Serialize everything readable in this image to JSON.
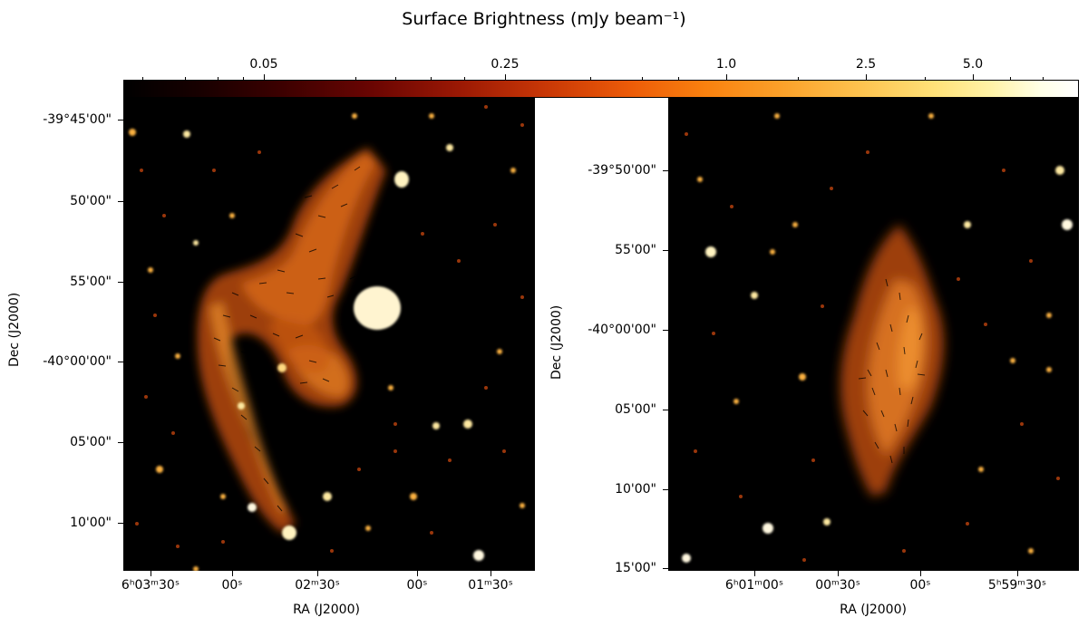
{
  "colorbar": {
    "title": "Surface Brightness (mJy beam⁻¹)",
    "ticks": [
      "0.05",
      "0.25",
      "1.0",
      "2.5",
      "5.0"
    ],
    "colormap": [
      "#000000",
      "#6a0502",
      "#c83706",
      "#f9810f",
      "#fdc24e",
      "#ffffff"
    ]
  },
  "left_panel": {
    "dec_labels": [
      "-39°45'00\"",
      "50'00\"",
      "55'00\"",
      "-40°00'00\"",
      "05'00\"",
      "10'00\""
    ],
    "ra_labels": [
      "6ʰ03ᵐ30ˢ",
      "00ˢ",
      "02ᵐ30ˢ",
      "00ˢ",
      "01ᵐ30ˢ"
    ],
    "xlabel": "RA (J2000)",
    "ylabel": "Dec (J2000)"
  },
  "right_panel": {
    "dec_labels": [
      "-39°50'00\"",
      "55'00\"",
      "-40°00'00\"",
      "05'00\"",
      "10'00\"",
      "15'00\""
    ],
    "ra_labels": [
      "6ʰ01ᵐ00ˢ",
      "00ᵐ30ˢ",
      "00ˢ",
      "5ʰ59ᵐ30ˢ"
    ],
    "xlabel": "RA (J2000)",
    "ylabel": "Dec (J2000)"
  }
}
